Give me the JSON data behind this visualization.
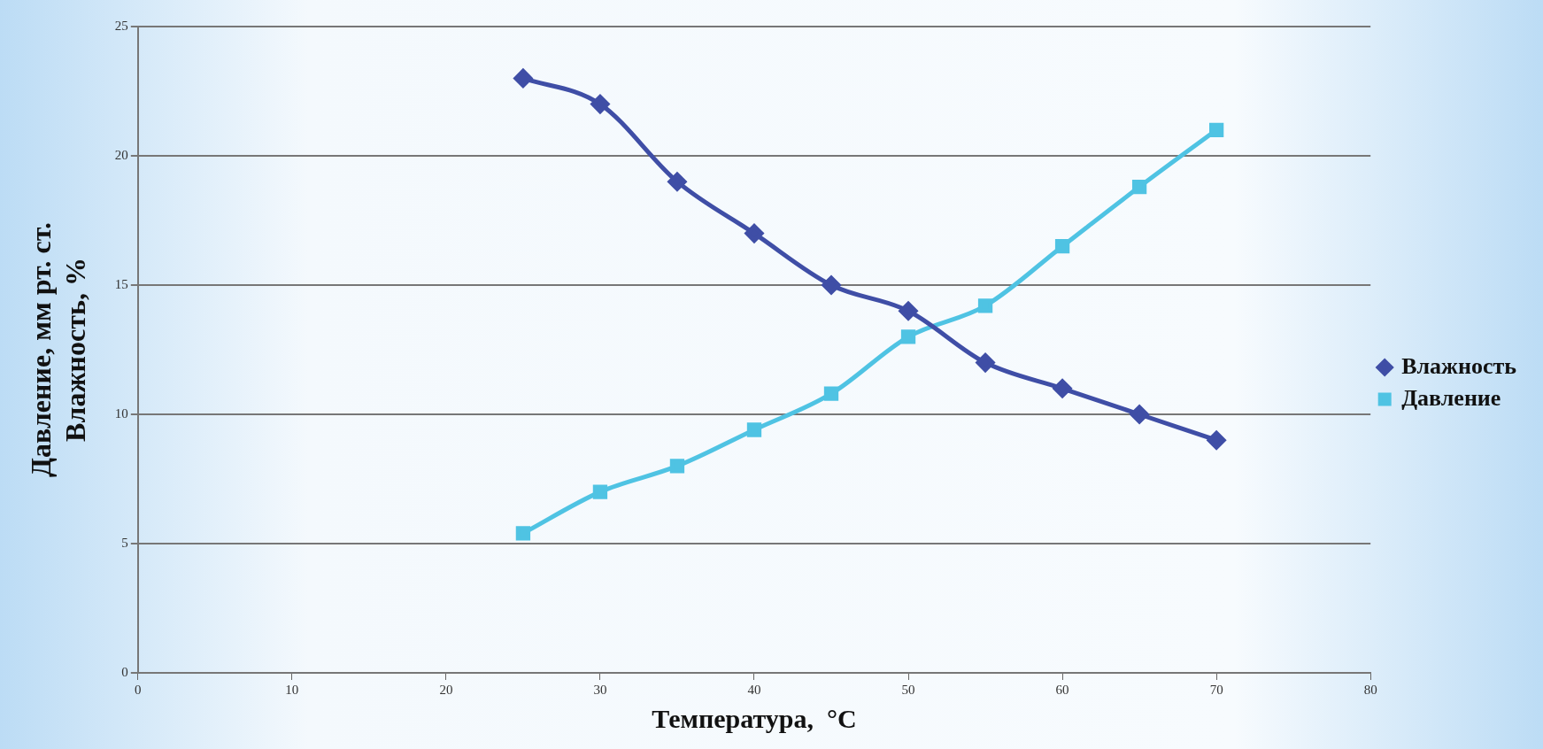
{
  "chart_data": {
    "type": "line",
    "xlabel": "Температура,  °C",
    "ylabel": "Давление, мм рт. ст.\nВлажность, %",
    "xlim": [
      0,
      80
    ],
    "xticks": [
      0,
      10,
      20,
      30,
      40,
      50,
      60,
      70,
      80
    ],
    "ylim": [
      0,
      25
    ],
    "yticks": [
      0,
      5,
      10,
      15,
      20,
      25
    ],
    "x": [
      25,
      30,
      35,
      40,
      45,
      50,
      55,
      60,
      65,
      70
    ],
    "series": [
      {
        "name": "Влажность",
        "color": "#3f4ea6",
        "marker": "diamond",
        "values": [
          23,
          22,
          19,
          17,
          15,
          14,
          12,
          11,
          10,
          9
        ]
      },
      {
        "name": "Давление",
        "color": "#4fc3e3",
        "marker": "square",
        "values": [
          5.4,
          7,
          8,
          9.4,
          10.8,
          13,
          14.2,
          16.5,
          18.8,
          21
        ]
      }
    ],
    "grid": "y",
    "legend": "right",
    "line_style": "solid"
  }
}
